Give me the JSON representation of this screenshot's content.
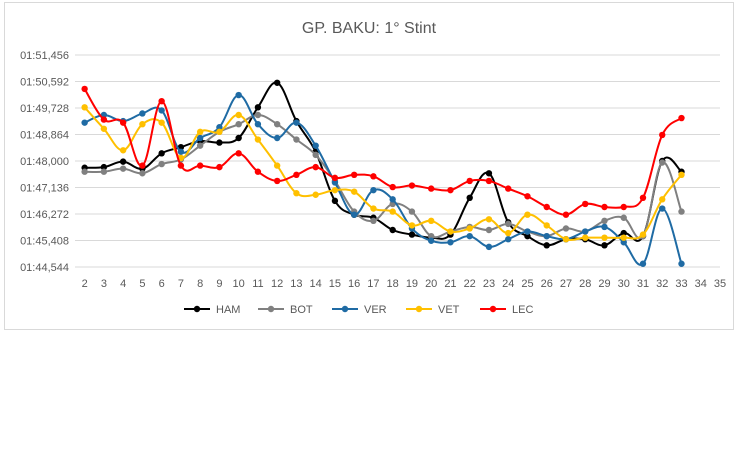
{
  "chart_data": {
    "type": "line",
    "title": "GP. BAKU: 1° Stint",
    "x": [
      2,
      3,
      4,
      5,
      6,
      7,
      8,
      9,
      10,
      11,
      12,
      13,
      14,
      15,
      16,
      17,
      18,
      19,
      20,
      21,
      22,
      23,
      24,
      25,
      26,
      27,
      28,
      29,
      30,
      31,
      32,
      33
    ],
    "x_ticks": [
      2,
      3,
      4,
      5,
      6,
      7,
      8,
      9,
      10,
      11,
      12,
      13,
      14,
      15,
      16,
      17,
      18,
      19,
      20,
      21,
      22,
      23,
      24,
      25,
      26,
      27,
      28,
      29,
      30,
      31,
      32,
      33,
      34,
      35
    ],
    "y_ticks": [
      "01:44,544",
      "01:45,408",
      "01:46,272",
      "01:47,136",
      "01:48,000",
      "01:48,864",
      "01:49,728",
      "01:50,592",
      "01:51,456"
    ],
    "ylim": [
      104.544,
      111.456
    ],
    "y_unit": "seconds",
    "grid": true,
    "legend_position": "bottom",
    "series": [
      {
        "name": "HAM",
        "color": "#000000",
        "values": [
          107.78,
          107.8,
          107.98,
          107.75,
          108.25,
          108.45,
          108.65,
          108.6,
          108.75,
          109.75,
          110.55,
          109.3,
          108.3,
          106.7,
          106.25,
          106.15,
          105.75,
          105.6,
          105.5,
          105.6,
          106.8,
          107.6,
          106.0,
          105.55,
          105.25,
          105.45,
          105.45,
          105.25,
          105.65,
          105.55,
          108.0,
          107.65
        ]
      },
      {
        "name": "BOT",
        "color": "#808080",
        "values": [
          107.65,
          107.65,
          107.75,
          107.6,
          107.9,
          108.05,
          108.5,
          108.95,
          109.2,
          109.5,
          109.2,
          108.7,
          108.2,
          107.35,
          106.35,
          106.05,
          106.6,
          106.35,
          105.55,
          105.7,
          105.85,
          105.75,
          105.95,
          105.7,
          105.55,
          105.8,
          105.7,
          106.05,
          106.15,
          105.55,
          107.95,
          106.35
        ]
      },
      {
        "name": "VER",
        "color": "#1f6ba4",
        "values": [
          109.25,
          109.5,
          109.3,
          109.55,
          109.65,
          108.3,
          108.75,
          109.1,
          110.15,
          109.2,
          108.75,
          109.25,
          108.5,
          107.3,
          106.25,
          107.05,
          106.75,
          105.8,
          105.4,
          105.35,
          105.55,
          105.2,
          105.45,
          105.7,
          105.55,
          105.45,
          105.7,
          105.85,
          105.35,
          104.65,
          106.45,
          104.65
        ]
      },
      {
        "name": "VET",
        "color": "#ffc000",
        "values": [
          109.75,
          109.05,
          108.35,
          109.2,
          109.25,
          108.1,
          108.95,
          108.95,
          109.5,
          108.7,
          107.85,
          106.95,
          106.9,
          107.05,
          107.0,
          106.45,
          106.35,
          105.9,
          106.05,
          105.7,
          105.8,
          106.1,
          105.65,
          106.25,
          105.9,
          105.45,
          105.5,
          105.5,
          105.5,
          105.6,
          106.75,
          107.55
        ]
      },
      {
        "name": "LEC",
        "color": "#ff0000",
        "values": [
          110.35,
          109.35,
          109.25,
          107.85,
          109.95,
          107.85,
          107.85,
          107.8,
          108.25,
          107.65,
          107.35,
          107.55,
          107.8,
          107.45,
          107.55,
          107.5,
          107.15,
          107.2,
          107.1,
          107.05,
          107.35,
          107.35,
          107.1,
          106.85,
          106.5,
          106.25,
          106.6,
          106.5,
          106.5,
          106.8,
          108.85,
          109.4
        ]
      }
    ]
  }
}
